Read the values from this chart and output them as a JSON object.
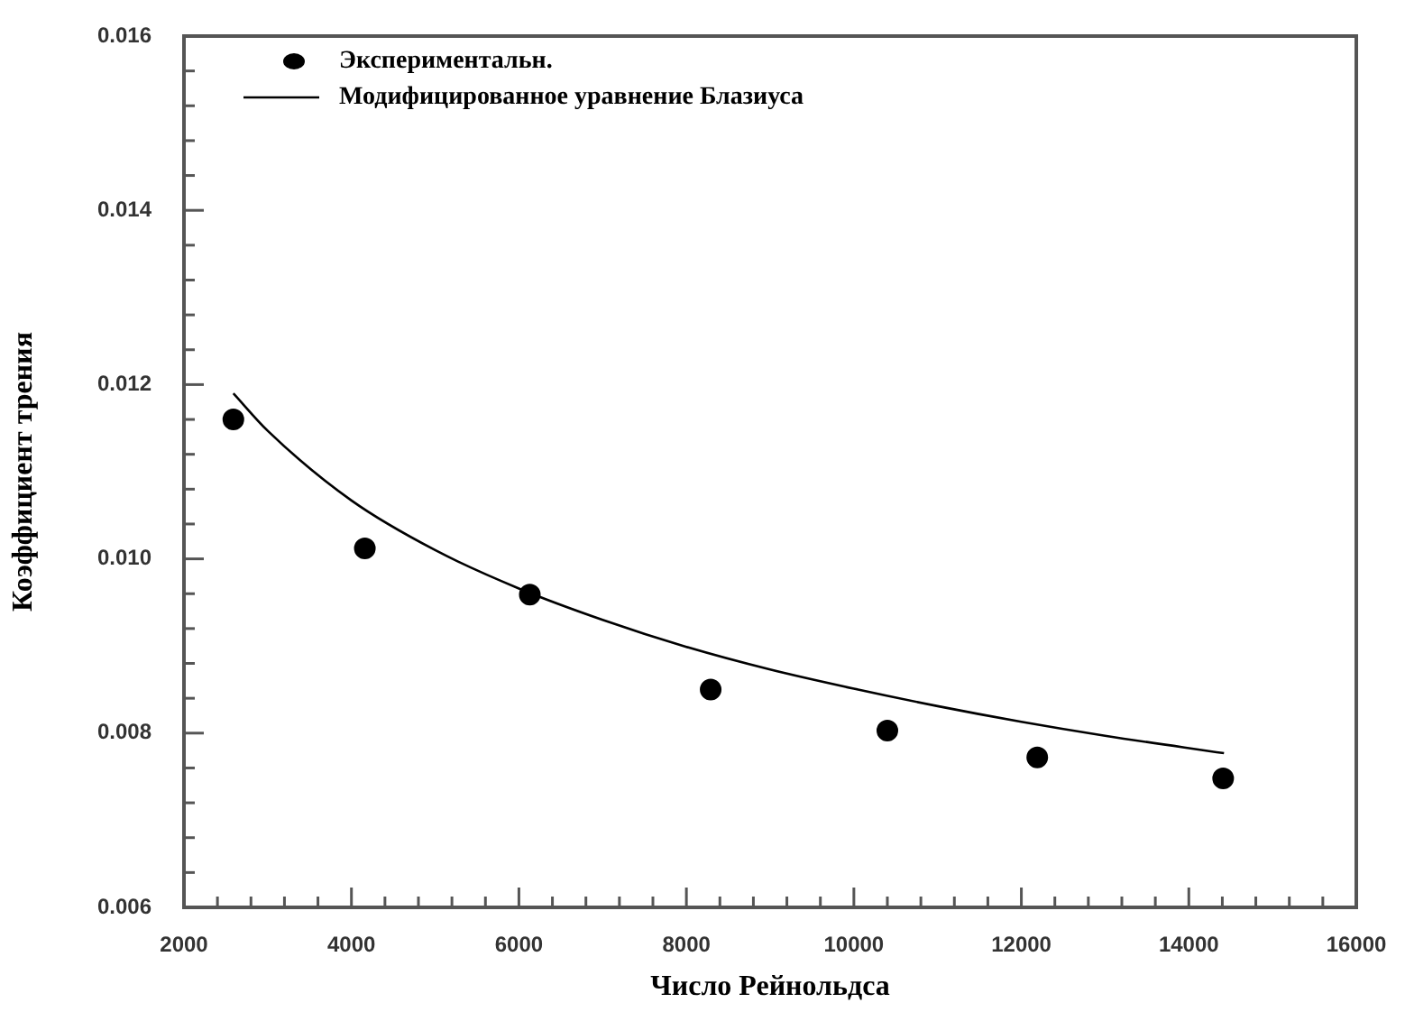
{
  "chart_data": {
    "type": "scatter",
    "xlabel": "Число Рейнольдса",
    "ylabel": "Коэффициент трения",
    "xlim": [
      2000,
      16000
    ],
    "ylim": [
      0.006,
      0.016
    ],
    "xticks": [
      2000,
      {
        "value": 2400,
        "label": null
      },
      {
        "value": 2800,
        "label": null
      },
      {
        "value": 3200,
        "label": null
      },
      {
        "value": 3600,
        "label": null
      },
      4000,
      {
        "value": 4400,
        "label": null
      },
      {
        "value": 4800,
        "label": null
      },
      {
        "value": 5200,
        "label": null
      },
      {
        "value": 5600,
        "label": null
      },
      6000,
      {
        "value": 6400,
        "label": null
      },
      {
        "value": 6800,
        "label": null
      },
      {
        "value": 7200,
        "label": null
      },
      {
        "value": 7600,
        "label": null
      },
      8000,
      {
        "value": 8400,
        "label": null
      },
      {
        "value": 8800,
        "label": null
      },
      {
        "value": 9200,
        "label": null
      },
      {
        "value": 9600,
        "label": null
      },
      10000,
      {
        "value": 10400,
        "label": null
      },
      {
        "value": 10800,
        "label": null
      },
      {
        "value": 11200,
        "label": null
      },
      {
        "value": 11600,
        "label": null
      },
      12000,
      {
        "value": 12400,
        "label": null
      },
      {
        "value": 12800,
        "label": null
      },
      {
        "value": 13200,
        "label": null
      },
      {
        "value": 13600,
        "label": null
      },
      14000,
      {
        "value": 14400,
        "label": null
      },
      {
        "value": 14800,
        "label": null
      },
      {
        "value": 15200,
        "label": null
      },
      {
        "value": 15600,
        "label": null
      },
      16000
    ],
    "yticks": [
      {
        "value": 0.006,
        "label": "0.006"
      },
      {
        "value": 0.0064,
        "label": null
      },
      {
        "value": 0.0068,
        "label": null
      },
      {
        "value": 0.0072,
        "label": null
      },
      {
        "value": 0.0076,
        "label": null
      },
      {
        "value": 0.008,
        "label": "0.008"
      },
      {
        "value": 0.0084,
        "label": null
      },
      {
        "value": 0.0088,
        "label": null
      },
      {
        "value": 0.0092,
        "label": null
      },
      {
        "value": 0.0096,
        "label": null
      },
      {
        "value": 0.01,
        "label": "0.010"
      },
      {
        "value": 0.0104,
        "label": null
      },
      {
        "value": 0.0108,
        "label": null
      },
      {
        "value": 0.0112,
        "label": null
      },
      {
        "value": 0.0116,
        "label": null
      },
      {
        "value": 0.012,
        "label": "0.012"
      },
      {
        "value": 0.0124,
        "label": null
      },
      {
        "value": 0.0128,
        "label": null
      },
      {
        "value": 0.0132,
        "label": null
      },
      {
        "value": 0.0136,
        "label": null
      },
      {
        "value": 0.014,
        "label": "0.014"
      },
      {
        "value": 0.0144,
        "label": null
      },
      {
        "value": 0.0148,
        "label": null
      },
      {
        "value": 0.0152,
        "label": null
      },
      {
        "value": 0.0156,
        "label": null
      },
      {
        "value": 0.016,
        "label": "0.016"
      }
    ],
    "grid": false,
    "legend": "top left",
    "series": [
      {
        "name": "Экспериментальн.",
        "type": "scatter",
        "marker": "circle",
        "color": "#000000",
        "x": [
          2590,
          4160,
          6130,
          8290,
          10400,
          12190,
          14410
        ],
        "values": [
          0.0116,
          0.01012,
          0.00959,
          0.0085,
          0.00803,
          0.00772,
          0.00748
        ]
      },
      {
        "name": "Модифицированное уравнение Блазиуса",
        "type": "line",
        "marker": "none",
        "line_style": "solid",
        "color": "#000000",
        "x": [
          2590,
          3000,
          4000,
          5000,
          6000,
          7000,
          8000,
          9000,
          10000,
          11000,
          12000,
          13000,
          14420
        ],
        "values": [
          0.0119,
          0.01147,
          0.01067,
          0.0101,
          0.00966,
          0.0093,
          0.00899,
          0.00873,
          0.00851,
          0.00831,
          0.00813,
          0.00797,
          0.00777
        ]
      }
    ]
  }
}
